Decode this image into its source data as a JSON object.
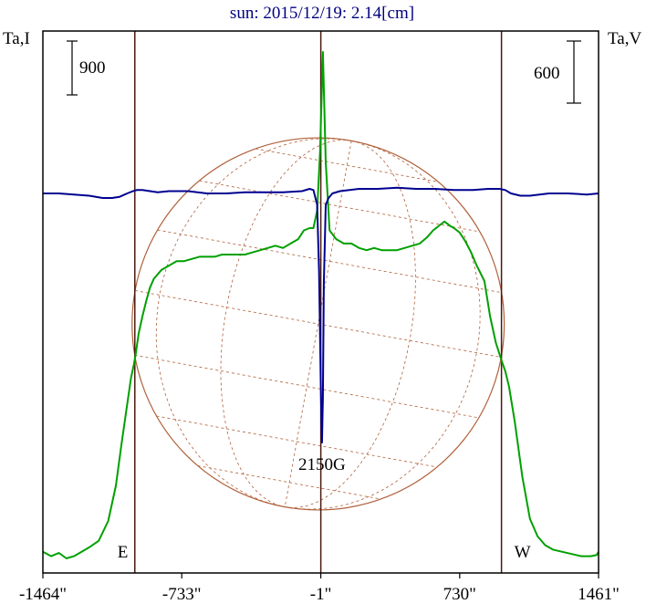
{
  "chart_data": {
    "type": "line",
    "title": "sun: 2015/12/19: 2.14[cm]",
    "left_axis_label": "Ta,I",
    "right_axis_label": "Ta,V",
    "left_scale_label": "900",
    "right_scale_label": "600",
    "x_ticks": [
      "-1464\"",
      "-733\"",
      "-1\"",
      "730\"",
      "1461\""
    ],
    "x_tick_values": [
      -1464,
      -733,
      -1,
      730,
      1461
    ],
    "xlim": [
      -1464,
      1461
    ],
    "limb_labels": {
      "east": "E",
      "west": "W"
    },
    "limb_positions": [
      -980,
      950
    ],
    "center_line": -1,
    "annotation": "2150G",
    "annotation_x": 5,
    "colors": {
      "intensity": "#00a000",
      "polarization": "#000090",
      "frame": "#000000",
      "vertical_lines": "#4a1a10",
      "disk": "#b0603a",
      "title": "#000080"
    },
    "series": [
      {
        "color": "#00a000",
        "x": [
          -1464,
          -1420,
          -1380,
          -1340,
          -1300,
          -1260,
          -1220,
          -1170,
          -1120,
          -1080,
          -1050,
          -1020,
          -1000,
          -985,
          -975,
          -960,
          -940,
          -920,
          -900,
          -880,
          -860,
          -840,
          -800,
          -760,
          -720,
          -680,
          -640,
          -600,
          -560,
          -520,
          -480,
          -440,
          -400,
          -360,
          -320,
          -280,
          -240,
          -200,
          -160,
          -120,
          -90,
          -60,
          -40,
          -20,
          -5,
          10,
          25,
          45,
          80,
          120,
          160,
          200,
          240,
          280,
          320,
          360,
          400,
          440,
          480,
          520,
          560,
          590,
          620,
          650,
          680,
          700,
          730,
          760,
          790,
          820,
          860,
          890,
          920,
          950,
          970,
          990,
          1020,
          1060,
          1100,
          1140,
          1180,
          1220,
          1270,
          1320,
          1370,
          1420,
          1450,
          1461
        ],
        "y": [
          0.03,
          0.01,
          0.025,
          0.0,
          0.01,
          0.03,
          0.05,
          0.08,
          0.17,
          0.33,
          0.52,
          0.7,
          0.82,
          0.88,
          0.93,
          1.02,
          1.1,
          1.17,
          1.23,
          1.27,
          1.29,
          1.31,
          1.33,
          1.35,
          1.35,
          1.36,
          1.37,
          1.37,
          1.37,
          1.38,
          1.38,
          1.38,
          1.38,
          1.39,
          1.4,
          1.41,
          1.42,
          1.41,
          1.43,
          1.45,
          1.49,
          1.5,
          1.5,
          1.58,
          1.85,
          2.3,
          1.8,
          1.49,
          1.45,
          1.43,
          1.43,
          1.41,
          1.4,
          1.41,
          1.4,
          1.4,
          1.4,
          1.41,
          1.42,
          1.43,
          1.46,
          1.49,
          1.51,
          1.53,
          1.51,
          1.5,
          1.48,
          1.44,
          1.39,
          1.33,
          1.26,
          1.1,
          0.98,
          0.9,
          0.85,
          0.78,
          0.62,
          0.37,
          0.18,
          0.1,
          0.06,
          0.04,
          0.03,
          0.02,
          0.01,
          0.01,
          0.015,
          0.03
        ]
      },
      {
        "color": "#000090",
        "x": [
          -1464,
          -1380,
          -1300,
          -1220,
          -1150,
          -1100,
          -1060,
          -1020,
          -990,
          -970,
          -940,
          -900,
          -860,
          -800,
          -700,
          -600,
          -500,
          -400,
          -300,
          -200,
          -100,
          -60,
          -40,
          -20,
          -10,
          0,
          5,
          10,
          15,
          25,
          40,
          60,
          100,
          200,
          300,
          400,
          500,
          600,
          700,
          800,
          880,
          940,
          970,
          1000,
          1050,
          1100,
          1200,
          1300,
          1400,
          1461
        ],
        "y": [
          0.0,
          0.0,
          -0.005,
          -0.01,
          -0.02,
          -0.02,
          -0.015,
          0.0,
          0.01,
          0.015,
          0.015,
          0.01,
          0.005,
          0.01,
          0.01,
          0.0,
          0.0,
          0.005,
          0.005,
          0.005,
          0.01,
          0.02,
          0.015,
          -0.05,
          -0.35,
          -0.9,
          -1.1,
          -0.9,
          -0.4,
          -0.05,
          -0.02,
          0.0,
          0.01,
          0.02,
          0.02,
          0.025,
          0.02,
          0.02,
          0.015,
          0.015,
          0.02,
          0.02,
          0.015,
          0.0,
          -0.01,
          -0.01,
          0.0,
          0.0,
          -0.005,
          0.0
        ]
      }
    ]
  }
}
